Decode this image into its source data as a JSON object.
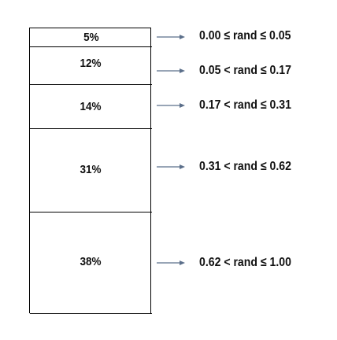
{
  "segments": [
    {
      "label": "5%",
      "range": "0.00 ≤ rand ≤ 0.05"
    },
    {
      "label": "12%",
      "range": "0.05 < rand ≤ 0.17"
    },
    {
      "label": "14%",
      "range": "0.17 < rand ≤ 0.31"
    },
    {
      "label": "31%",
      "range": "0.31 < rand ≤ 0.62"
    },
    {
      "label": "38%",
      "range": "0.62 < rand ≤ 1.00"
    }
  ],
  "colors": {
    "border": "#000000",
    "arrow": "#5b6f8a",
    "text": "#111111"
  },
  "icons": {
    "arrow": "right-arrow-icon"
  }
}
